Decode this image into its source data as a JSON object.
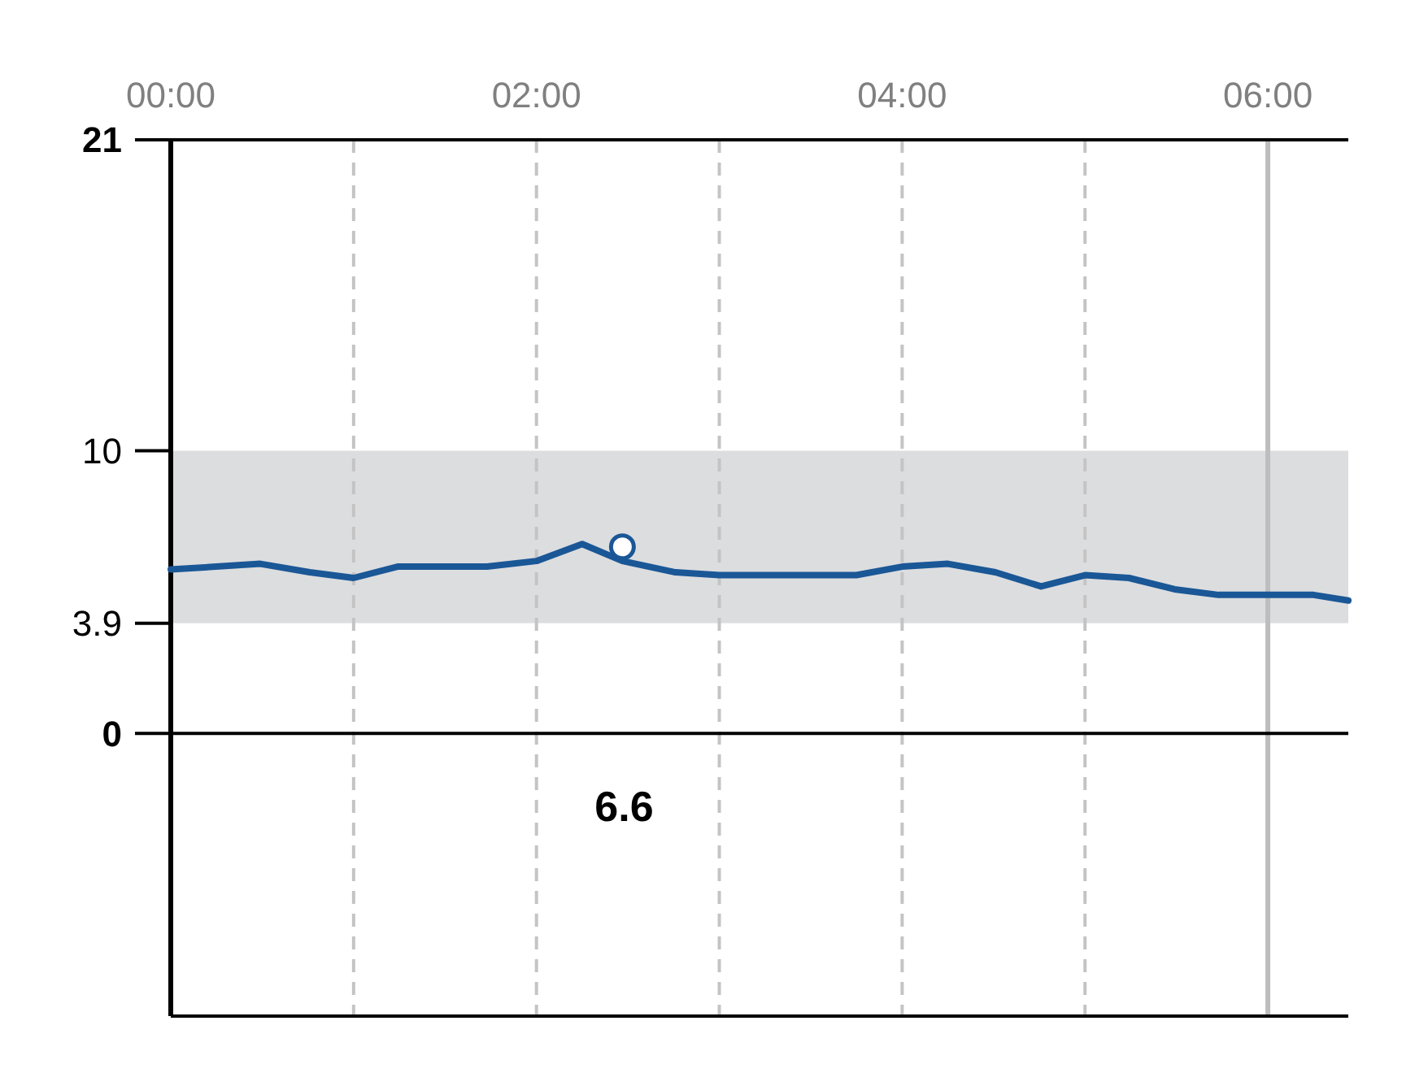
{
  "chart_data": {
    "type": "line",
    "x": [
      0,
      0.49,
      0.76,
      1.0,
      1.24,
      1.73,
      2.0,
      2.25,
      2.47,
      2.76,
      3.0,
      3.75,
      4.0,
      4.25,
      4.51,
      4.76,
      5.0,
      5.24,
      5.49,
      5.73,
      6.25,
      6.44
    ],
    "series": [
      {
        "color": "#1a5796",
        "values": [
          5.8,
          6.0,
          5.7,
          5.5,
          5.9,
          5.9,
          6.1,
          6.7,
          6.1,
          5.7,
          5.6,
          5.6,
          5.9,
          6.0,
          5.7,
          5.2,
          5.6,
          5.5,
          5.1,
          4.9,
          4.9,
          4.7
        ]
      },
      {
        "type": "scatter",
        "x": [
          2.47
        ],
        "color": "#ffffff",
        "values": [
          6.6
        ],
        "marker": "circle"
      }
    ],
    "xlim": [
      0,
      6.44
    ],
    "xticks": [
      {
        "value": 0,
        "label": "00:00"
      },
      {
        "value": 1,
        "label": null
      },
      {
        "value": 2,
        "label": "02:00"
      },
      {
        "value": 3,
        "label": null
      },
      {
        "value": 4,
        "label": "04:00"
      },
      {
        "value": 5,
        "label": null
      },
      {
        "value": 6,
        "label": "06:00"
      }
    ],
    "ylim": [
      -10,
      21
    ],
    "yticks": [
      0,
      3.9,
      10,
      21
    ],
    "grid": "x",
    "marker": "none",
    "line_style": "solid",
    "bands": [
      {
        "axis": "y",
        "from": 3.9,
        "to": 10,
        "color": "#dcdddf"
      }
    ],
    "ref_lines": [
      {
        "axis": "x",
        "value": 6,
        "color": "#bdbdbd",
        "line_style": "solid"
      }
    ],
    "annotations": [
      "6.6"
    ]
  }
}
